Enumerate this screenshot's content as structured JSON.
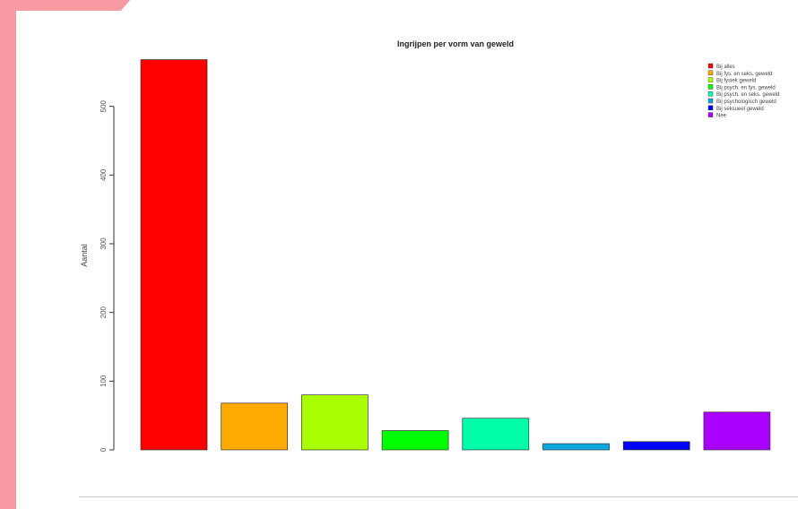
{
  "chart_data": {
    "type": "bar",
    "title": "Ingrijpen per vorm van geweld",
    "xlabel": "",
    "ylabel": "Aantal",
    "ylim": [
      0,
      600
    ],
    "yticks": [
      0,
      100,
      200,
      300,
      400,
      500
    ],
    "categories": [
      "Bij alles",
      "Bij fys. en seks. geweld",
      "Bij fysiek geweld",
      "Bij psych. en fys. geweld",
      "Bij psych. en seks. geweld",
      "Bij psychologisch geweld",
      "Bij seksueel geweld",
      "Nee"
    ],
    "values": [
      568,
      68,
      80,
      28,
      46,
      9,
      12,
      55
    ],
    "colors": [
      "#ff0000",
      "#ffaa00",
      "#aaff00",
      "#00ff00",
      "#00ffaa",
      "#0aa8e0",
      "#0000ff",
      "#aa00ff"
    ],
    "legend_position": "top-right",
    "grid": false
  }
}
